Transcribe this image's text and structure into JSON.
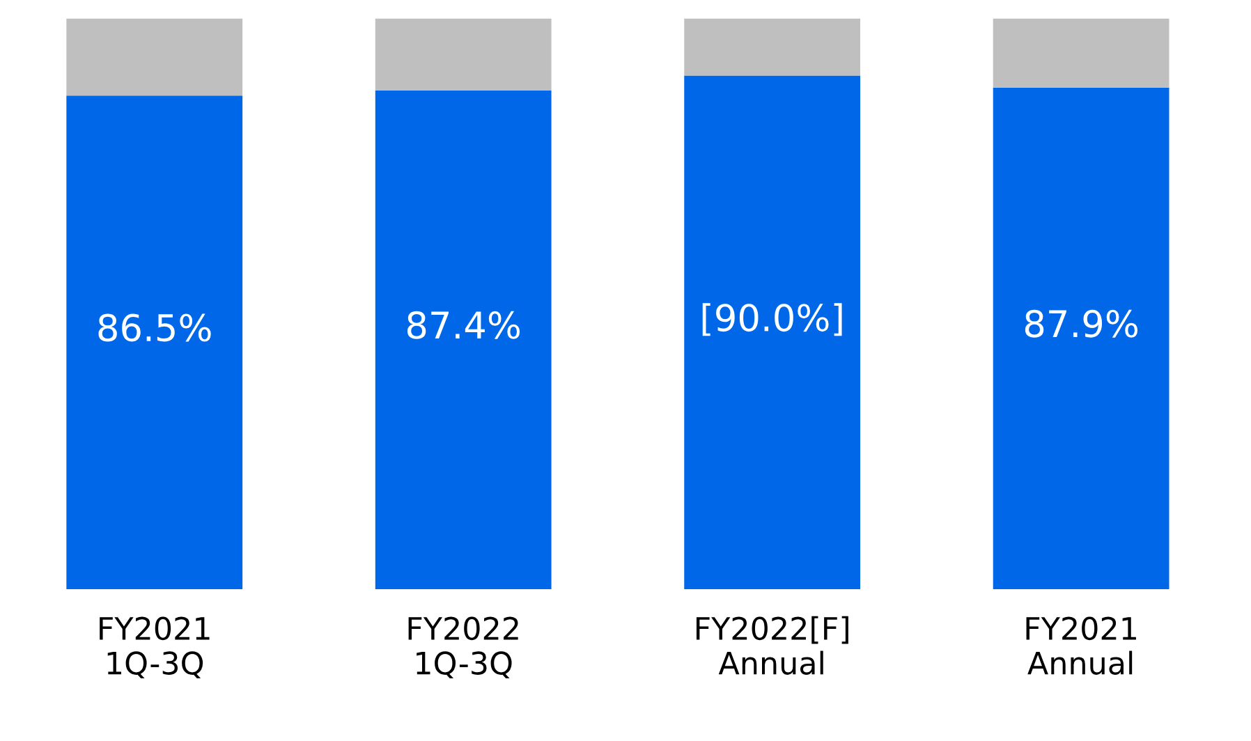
{
  "chart_data": {
    "type": "bar",
    "stacked": true,
    "categories": [
      "FY2021\n1Q-3Q",
      "FY2022\n1Q-3Q",
      "FY2022[F]\nAnnual",
      "FY2021\nAnnual"
    ],
    "ylim": [
      0,
      100
    ],
    "tick_labels": "x",
    "grid": false,
    "legend": false,
    "series": [
      {
        "color": "#0068e8",
        "values": [
          86.5,
          87.4,
          90.0,
          87.9
        ],
        "value_labels": [
          "86.5%",
          "87.4%",
          "[90.0%]",
          "87.9%"
        ]
      },
      {
        "color": "#bfbfbf",
        "values": [
          13.5,
          12.6,
          10.0,
          12.1
        ]
      }
    ]
  }
}
